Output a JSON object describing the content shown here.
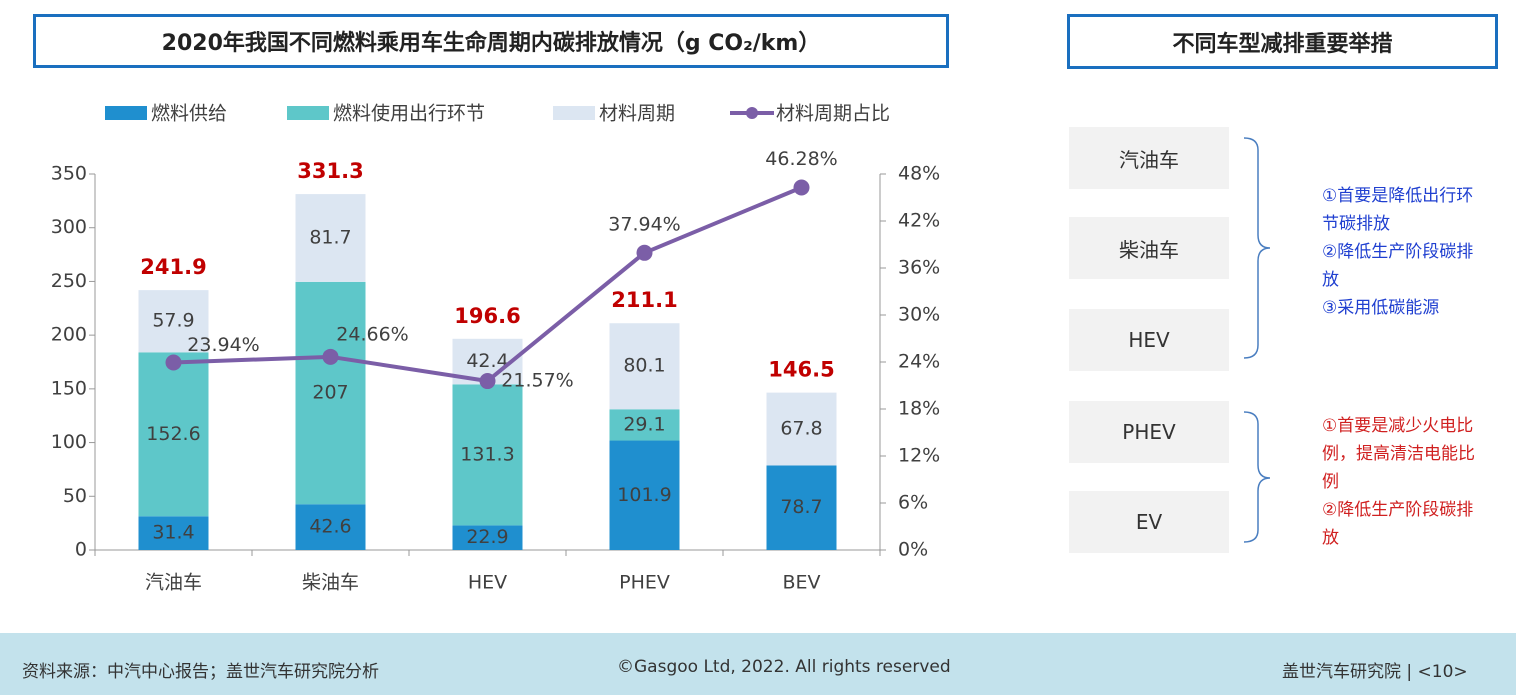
{
  "chart_data": {
    "type": "bar",
    "title": "2020年我国不同燃料乘用车生命周期内碳排放情况（g CO₂/km）",
    "categories": [
      "汽油车",
      "柴油车",
      "HEV",
      "PHEV",
      "BEV"
    ],
    "series": [
      {
        "name": "燃料供给",
        "color": "#1f8fcf",
        "values": [
          31.4,
          42.6,
          22.9,
          101.9,
          78.7
        ]
      },
      {
        "name": "燃料使用出行环节",
        "color": "#5ec7c9",
        "values": [
          152.6,
          207,
          131.3,
          29.1,
          null
        ]
      },
      {
        "name": "材料周期",
        "color": "#dce6f2",
        "values": [
          57.9,
          81.7,
          42.4,
          80.1,
          67.8
        ]
      },
      {
        "name": "材料周期占比",
        "color": "#7b5ea7",
        "type": "line",
        "axis": "y2",
        "values": [
          23.94,
          24.66,
          21.57,
          37.94,
          46.28
        ],
        "value_labels": [
          "23.94%",
          "24.66%",
          "21.57%",
          "37.94%",
          "46.28%"
        ]
      }
    ],
    "totals": [
      241.9,
      331.3,
      196.6,
      211.1,
      146.5
    ],
    "totals_color": "#c00000",
    "ylim": [
      0,
      350
    ],
    "yticks": [
      0,
      50,
      100,
      150,
      200,
      250,
      300,
      350
    ],
    "y2lim": [
      0,
      48
    ],
    "y2ticks": [
      {
        "value": 0,
        "label": "0%"
      },
      {
        "value": 6,
        "label": "6%"
      },
      {
        "value": 12,
        "label": "12%"
      },
      {
        "value": 18,
        "label": "18%"
      },
      {
        "value": 24,
        "label": "24%"
      },
      {
        "value": 30,
        "label": "30%"
      },
      {
        "value": 36,
        "label": "36%"
      },
      {
        "value": 42,
        "label": "42%"
      },
      {
        "value": 48,
        "label": "48%"
      }
    ],
    "grid": false,
    "legend": "top"
  },
  "measures": {
    "title": "不同车型减排重要举措",
    "groups": [
      {
        "items": [
          "汽油车",
          "柴油车",
          "HEV"
        ],
        "notes": [
          "①首要是降低出行环节碳排放",
          "②降低生产阶段碳排放",
          "③采用低碳能源"
        ],
        "color": "#1f3fd0"
      },
      {
        "items": [
          "PHEV",
          "EV"
        ],
        "notes": [
          "①首要是减少火电比例，提高清洁电能比例",
          "②降低生产阶段碳排放"
        ],
        "color": "#d02020"
      }
    ]
  },
  "footer": {
    "source": "资料来源：中汽中心报告；盖世汽车研究院分析",
    "copyright": "©Gasgoo Ltd, 2022. All rights reserved",
    "page": "盖世汽车研究院 | <10>"
  }
}
